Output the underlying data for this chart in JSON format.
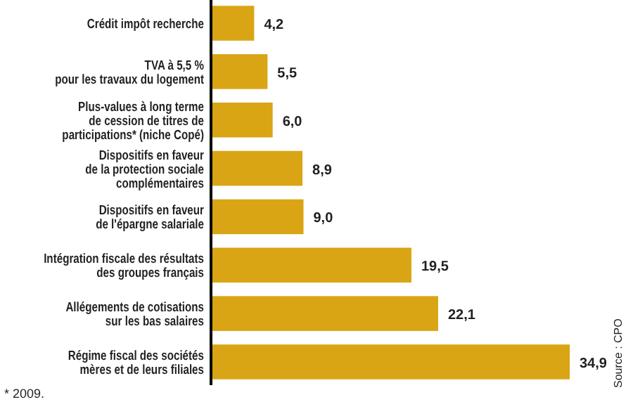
{
  "chart_data": {
    "type": "bar",
    "orientation": "horizontal",
    "categories": [
      "Crédit impôt recherche",
      "TVA à 5,5 %\npour les travaux du logement",
      "Plus-values à long terme\nde cession de titres de\nparticipations* (niche Copé)",
      "Dispositifs en faveur\nde la protection sociale\ncomplémentaires",
      "Dispositifs en faveur\nde l'épargne salariale",
      "Intégration fiscale des résultats\ndes groupes français",
      "Allégements de cotisations\nsur les bas salaires",
      "Régime fiscal des sociétés\nmères et de leurs filiales"
    ],
    "values": [
      4.2,
      5.5,
      6.0,
      8.9,
      9.0,
      19.5,
      22.1,
      34.9
    ],
    "value_labels": [
      "4,2",
      "5,5",
      "6,0",
      "8,9",
      "9,0",
      "19,5",
      "22,1",
      "34,9"
    ],
    "color": "#d9a514",
    "annotations": [
      "* 2009.",
      "Source : CPO"
    ]
  }
}
